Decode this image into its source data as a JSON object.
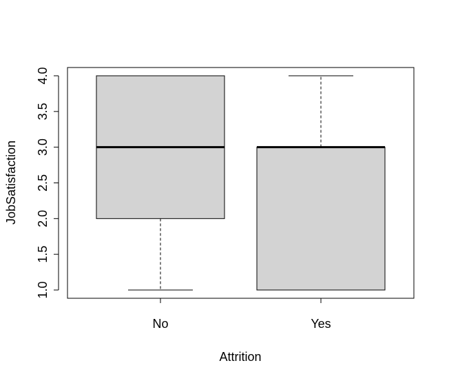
{
  "chart_data": {
    "type": "boxplot",
    "title": "",
    "xlabel": "Attrition",
    "ylabel": "JobSatisfaction",
    "categories": [
      "No",
      "Yes"
    ],
    "boxes": [
      {
        "category": "No",
        "min": 1.0,
        "q1": 2.0,
        "median": 3.0,
        "q3": 4.0,
        "max": 4.0
      },
      {
        "category": "Yes",
        "min": 1.0,
        "q1": 1.0,
        "median": 3.0,
        "q3": 3.0,
        "max": 4.0
      }
    ],
    "ylim": [
      0.9,
      4.1
    ],
    "yticks": [
      "1.0",
      "1.5",
      "2.0",
      "2.5",
      "3.0",
      "3.5",
      "4.0"
    ],
    "grid": false,
    "box_fill": "#d3d3d3",
    "line_color": "#000000"
  }
}
